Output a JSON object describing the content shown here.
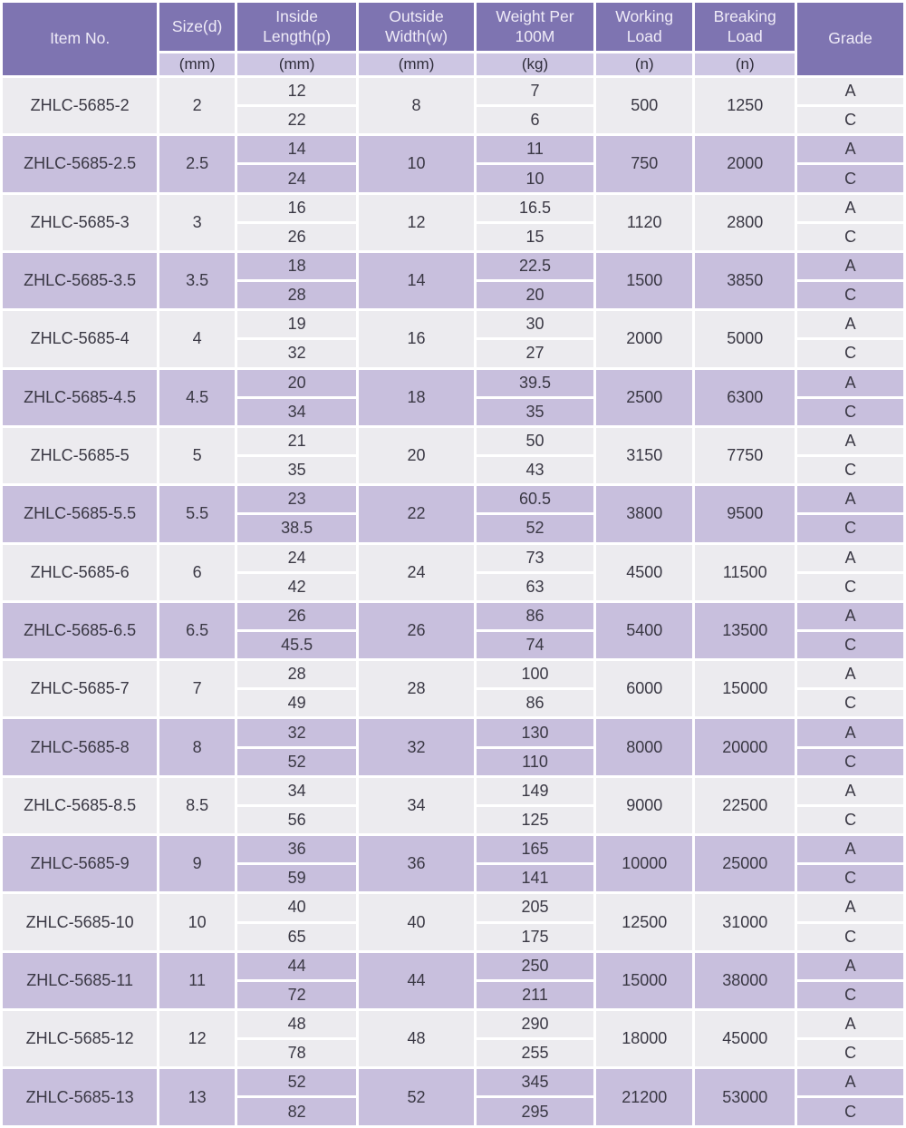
{
  "table": {
    "headers": {
      "item_no": "Item No.",
      "size": "Size(d)",
      "inside_length": "Inside\nLength(p)",
      "outside_width": "Outside\nWidth(w)",
      "weight_per_100m": "Weight Per\n100M",
      "working_load": "Working\nLoad",
      "breaking_load": "Breaking\nLoad",
      "grade": "Grade"
    },
    "units": {
      "size": "(mm)",
      "inside_length": "(mm)",
      "outside_width": "(mm)",
      "weight_per_100m": "(kg)",
      "working_load": "(n)",
      "breaking_load": "(n)"
    },
    "rows": [
      {
        "item_no": "ZHLC-5685-2",
        "size": "2",
        "inside_length": [
          "12",
          "22"
        ],
        "outside_width": "8",
        "weight_per_100m": [
          "7",
          "6"
        ],
        "working_load": "500",
        "breaking_load": "1250",
        "grades": [
          "A",
          "C"
        ]
      },
      {
        "item_no": "ZHLC-5685-2.5",
        "size": "2.5",
        "inside_length": [
          "14",
          "24"
        ],
        "outside_width": "10",
        "weight_per_100m": [
          "11",
          "10"
        ],
        "working_load": "750",
        "breaking_load": "2000",
        "grades": [
          "A",
          "C"
        ]
      },
      {
        "item_no": "ZHLC-5685-3",
        "size": "3",
        "inside_length": [
          "16",
          "26"
        ],
        "outside_width": "12",
        "weight_per_100m": [
          "16.5",
          "15"
        ],
        "working_load": "1120",
        "breaking_load": "2800",
        "grades": [
          "A",
          "C"
        ]
      },
      {
        "item_no": "ZHLC-5685-3.5",
        "size": "3.5",
        "inside_length": [
          "18",
          "28"
        ],
        "outside_width": "14",
        "weight_per_100m": [
          "22.5",
          "20"
        ],
        "working_load": "1500",
        "breaking_load": "3850",
        "grades": [
          "A",
          "C"
        ]
      },
      {
        "item_no": "ZHLC-5685-4",
        "size": "4",
        "inside_length": [
          "19",
          "32"
        ],
        "outside_width": "16",
        "weight_per_100m": [
          "30",
          "27"
        ],
        "working_load": "2000",
        "breaking_load": "5000",
        "grades": [
          "A",
          "C"
        ]
      },
      {
        "item_no": "ZHLC-5685-4.5",
        "size": "4.5",
        "inside_length": [
          "20",
          "34"
        ],
        "outside_width": "18",
        "weight_per_100m": [
          "39.5",
          "35"
        ],
        "working_load": "2500",
        "breaking_load": "6300",
        "grades": [
          "A",
          "C"
        ]
      },
      {
        "item_no": "ZHLC-5685-5",
        "size": "5",
        "inside_length": [
          "21",
          "35"
        ],
        "outside_width": "20",
        "weight_per_100m": [
          "50",
          "43"
        ],
        "working_load": "3150",
        "breaking_load": "7750",
        "grades": [
          "A",
          "C"
        ]
      },
      {
        "item_no": "ZHLC-5685-5.5",
        "size": "5.5",
        "inside_length": [
          "23",
          "38.5"
        ],
        "outside_width": "22",
        "weight_per_100m": [
          "60.5",
          "52"
        ],
        "working_load": "3800",
        "breaking_load": "9500",
        "grades": [
          "A",
          "C"
        ]
      },
      {
        "item_no": "ZHLC-5685-6",
        "size": "6",
        "inside_length": [
          "24",
          "42"
        ],
        "outside_width": "24",
        "weight_per_100m": [
          "73",
          "63"
        ],
        "working_load": "4500",
        "breaking_load": "11500",
        "grades": [
          "A",
          "C"
        ]
      },
      {
        "item_no": "ZHLC-5685-6.5",
        "size": "6.5",
        "inside_length": [
          "26",
          "45.5"
        ],
        "outside_width": "26",
        "weight_per_100m": [
          "86",
          "74"
        ],
        "working_load": "5400",
        "breaking_load": "13500",
        "grades": [
          "A",
          "C"
        ]
      },
      {
        "item_no": "ZHLC-5685-7",
        "size": "7",
        "inside_length": [
          "28",
          "49"
        ],
        "outside_width": "28",
        "weight_per_100m": [
          "100",
          "86"
        ],
        "working_load": "6000",
        "breaking_load": "15000",
        "grades": [
          "A",
          "C"
        ]
      },
      {
        "item_no": "ZHLC-5685-8",
        "size": "8",
        "inside_length": [
          "32",
          "52"
        ],
        "outside_width": "32",
        "weight_per_100m": [
          "130",
          "110"
        ],
        "working_load": "8000",
        "breaking_load": "20000",
        "grades": [
          "A",
          "C"
        ]
      },
      {
        "item_no": "ZHLC-5685-8.5",
        "size": "8.5",
        "inside_length": [
          "34",
          "56"
        ],
        "outside_width": "34",
        "weight_per_100m": [
          "149",
          "125"
        ],
        "working_load": "9000",
        "breaking_load": "22500",
        "grades": [
          "A",
          "C"
        ]
      },
      {
        "item_no": "ZHLC-5685-9",
        "size": "9",
        "inside_length": [
          "36",
          "59"
        ],
        "outside_width": "36",
        "weight_per_100m": [
          "165",
          "141"
        ],
        "working_load": "10000",
        "breaking_load": "25000",
        "grades": [
          "A",
          "C"
        ]
      },
      {
        "item_no": "ZHLC-5685-10",
        "size": "10",
        "inside_length": [
          "40",
          "65"
        ],
        "outside_width": "40",
        "weight_per_100m": [
          "205",
          "175"
        ],
        "working_load": "12500",
        "breaking_load": "31000",
        "grades": [
          "A",
          "C"
        ]
      },
      {
        "item_no": "ZHLC-5685-11",
        "size": "11",
        "inside_length": [
          "44",
          "72"
        ],
        "outside_width": "44",
        "weight_per_100m": [
          "250",
          "211"
        ],
        "working_load": "15000",
        "breaking_load": "38000",
        "grades": [
          "A",
          "C"
        ]
      },
      {
        "item_no": "ZHLC-5685-12",
        "size": "12",
        "inside_length": [
          "48",
          "78"
        ],
        "outside_width": "48",
        "weight_per_100m": [
          "290",
          "255"
        ],
        "working_load": "18000",
        "breaking_load": "45000",
        "grades": [
          "A",
          "C"
        ]
      },
      {
        "item_no": "ZHLC-5685-13",
        "size": "13",
        "inside_length": [
          "52",
          "82"
        ],
        "outside_width": "52",
        "weight_per_100m": [
          "345",
          "295"
        ],
        "working_load": "21200",
        "breaking_load": "53000",
        "grades": [
          "A",
          "C"
        ]
      }
    ]
  },
  "colors": {
    "header_bg": "#7E74B1",
    "header_text": "#EFEBF7",
    "units_bg": "#CDC6E3",
    "row_light": "#ECEBEF",
    "row_lavender": "#C8BFDD",
    "value_text": "#3A3844",
    "grid": "#FFFFFF"
  }
}
